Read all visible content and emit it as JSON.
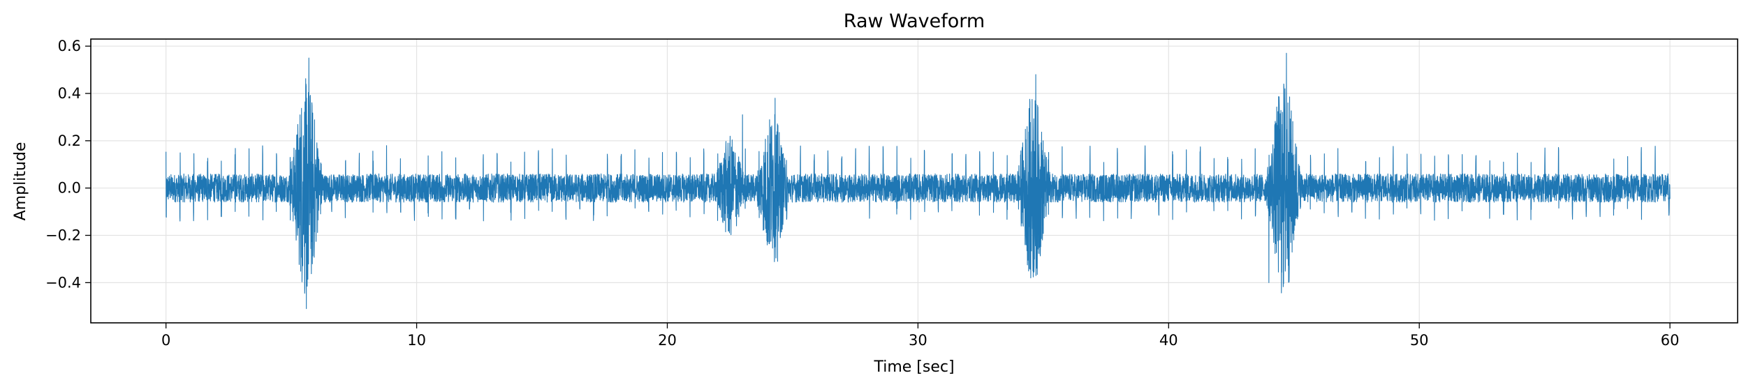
{
  "chart_data": {
    "type": "line",
    "title": "Raw Waveform",
    "xlabel": "Time [sec]",
    "ylabel": "Amplitude",
    "xlim": [
      -3,
      62.7
    ],
    "ylim": [
      -0.57,
      0.63
    ],
    "xticks": [
      0,
      10,
      20,
      30,
      40,
      50,
      60
    ],
    "xtick_labels": [
      "0",
      "10",
      "20",
      "30",
      "40",
      "50",
      "60"
    ],
    "yticks": [
      -0.4,
      -0.2,
      0.0,
      0.2,
      0.4,
      0.6
    ],
    "ytick_labels": [
      "−0.4",
      "−0.2",
      "0.0",
      "0.2",
      "0.4",
      "0.6"
    ],
    "grid": true,
    "legend": "none",
    "series": [
      {
        "color": "#1f77b4",
        "x_range": [
          0,
          60
        ],
        "baseline_noise_amplitude": 0.06,
        "periodic_spikes": {
          "period_sec": 0.55,
          "peak_up": 0.18,
          "peak_down": -0.14
        },
        "bursts": [
          {
            "center": 5.6,
            "max": 0.55,
            "min": -0.51
          },
          {
            "center": 22.5,
            "max": 0.22,
            "min": -0.26
          },
          {
            "center": 24.2,
            "max": 0.38,
            "min": -0.31
          },
          {
            "center": 34.6,
            "max": 0.48,
            "min": -0.38
          },
          {
            "center": 44.6,
            "max": 0.57,
            "min": -0.4
          }
        ],
        "peak_points": [
          {
            "x": 5.7,
            "y": 0.55
          },
          {
            "x": 5.6,
            "y": -0.51
          },
          {
            "x": 23.0,
            "y": 0.31
          },
          {
            "x": 24.3,
            "y": 0.38
          },
          {
            "x": 24.4,
            "y": -0.31
          },
          {
            "x": 34.7,
            "y": 0.48
          },
          {
            "x": 34.5,
            "y": -0.38
          },
          {
            "x": 44.7,
            "y": 0.57
          },
          {
            "x": 44.0,
            "y": -0.4
          }
        ]
      }
    ]
  }
}
